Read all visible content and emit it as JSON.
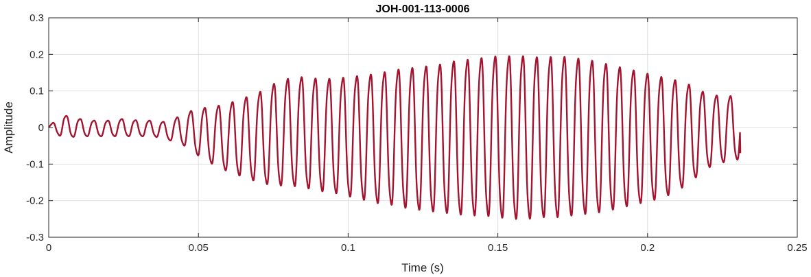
{
  "chart_data": {
    "type": "line",
    "title": "JOH-001-113-0006",
    "xlabel": "Time (s)",
    "ylabel": "Amplitude",
    "xlim": [
      0,
      0.25
    ],
    "ylim": [
      -0.3,
      0.3
    ],
    "xticks": [
      0,
      0.05,
      0.1,
      0.15,
      0.2,
      0.25
    ],
    "xtick_labels": [
      "0",
      "0.05",
      "0.1",
      "0.15",
      "0.2",
      "0.25"
    ],
    "yticks": [
      -0.3,
      -0.2,
      -0.1,
      0,
      0.1,
      0.2,
      0.3
    ],
    "ytick_labels": [
      "-0.3",
      "-0.2",
      "-0.1",
      "0",
      "0.1",
      "0.2",
      "0.3"
    ],
    "grid": true,
    "box": true,
    "line_color": "#a2142f",
    "series": [
      {
        "x": [
          0,
          0.005,
          0.01,
          0.015,
          0.02,
          0.025,
          0.03,
          0.035,
          0.04,
          0.045,
          0.05,
          0.055,
          0.06,
          0.065,
          0.07,
          0.075,
          0.08,
          0.085,
          0.09,
          0.095,
          0.1,
          0.105,
          0.11,
          0.115,
          0.12,
          0.125,
          0.13,
          0.135,
          0.14,
          0.145,
          0.15,
          0.155,
          0.16,
          0.165,
          0.17,
          0.175,
          0.18,
          0.185,
          0.19,
          0.195,
          0.2,
          0.205,
          0.21,
          0.215,
          0.22,
          0.225,
          0.231
        ],
        "upper": [
          0.005,
          0.035,
          0.025,
          0.02,
          0.02,
          0.025,
          0.02,
          0.02,
          0.015,
          0.04,
          0.055,
          0.06,
          0.07,
          0.085,
          0.1,
          0.125,
          0.14,
          0.145,
          0.14,
          0.14,
          0.145,
          0.15,
          0.155,
          0.165,
          0.17,
          0.175,
          0.18,
          0.19,
          0.195,
          0.2,
          0.205,
          0.205,
          0.205,
          0.2,
          0.205,
          0.2,
          0.195,
          0.185,
          0.175,
          0.165,
          0.155,
          0.145,
          0.135,
          0.12,
          0.095,
          0.09,
          0.09
        ],
        "lower": [
          -0.005,
          -0.03,
          -0.025,
          -0.025,
          -0.025,
          -0.025,
          -0.025,
          -0.025,
          -0.035,
          -0.05,
          -0.08,
          -0.105,
          -0.125,
          -0.14,
          -0.155,
          -0.165,
          -0.165,
          -0.17,
          -0.18,
          -0.185,
          -0.195,
          -0.205,
          -0.215,
          -0.22,
          -0.23,
          -0.235,
          -0.24,
          -0.245,
          -0.25,
          -0.25,
          -0.255,
          -0.26,
          -0.26,
          -0.255,
          -0.255,
          -0.25,
          -0.245,
          -0.24,
          -0.23,
          -0.22,
          -0.21,
          -0.2,
          -0.18,
          -0.15,
          -0.115,
          -0.1,
          -0.09
        ],
        "cycles": 50,
        "end_value": -0.07
      }
    ]
  }
}
